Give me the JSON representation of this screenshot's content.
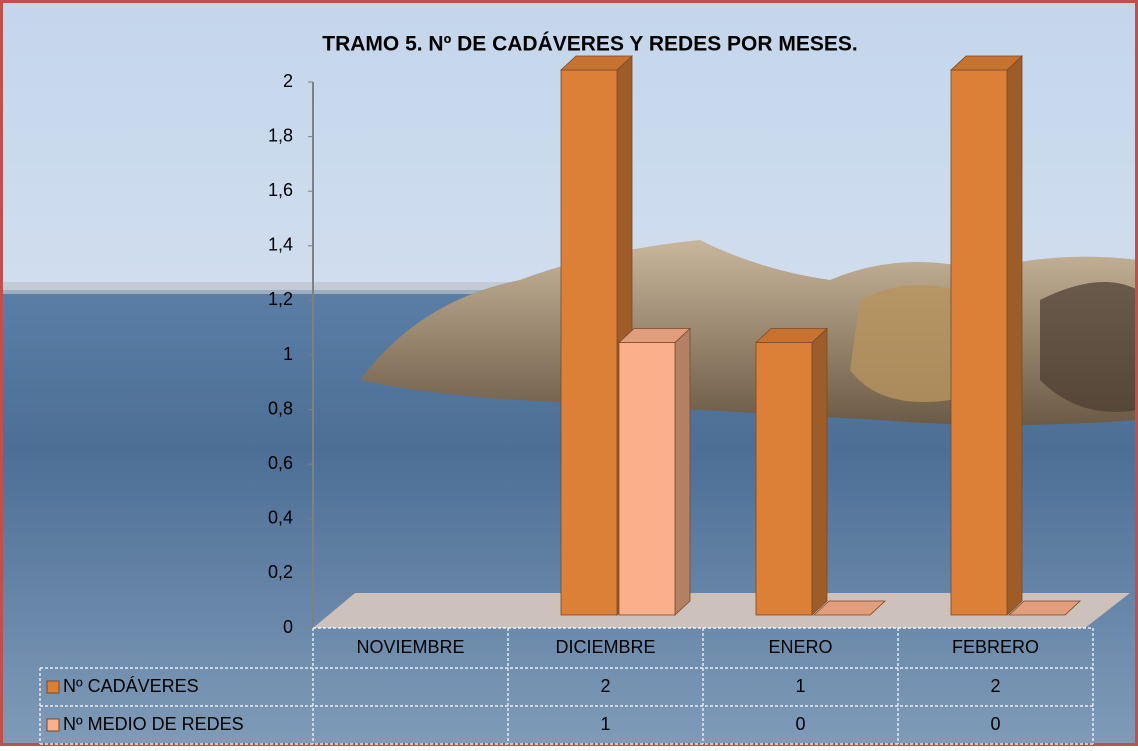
{
  "chart_data": {
    "type": "bar3d",
    "title": "TRAMO 5. Nº DE CADÁVERES  Y REDES POR MESES.",
    "categories": [
      "NOVIEMBRE",
      "DICIEMBRE",
      "ENERO",
      "FEBRERO"
    ],
    "series": [
      {
        "name": "Nº CADÁVERES",
        "color": "#dc8038",
        "values": [
          null,
          2,
          1,
          2
        ]
      },
      {
        "name": "Nº MEDIO DE REDES",
        "color": "#fab08a",
        "values": [
          null,
          1,
          0,
          0
        ]
      }
    ],
    "ylim": [
      0,
      2
    ],
    "yticks": [
      0,
      {
        "value": 0.2,
        "label": "0,2"
      },
      {
        "value": 0.4,
        "label": "0,4"
      },
      {
        "value": 0.6,
        "label": "0,6"
      },
      {
        "value": 0.8,
        "label": "0,8"
      },
      1,
      {
        "value": 1.2,
        "label": "1,2"
      },
      {
        "value": 1.4,
        "label": "1,4"
      },
      {
        "value": 1.6,
        "label": "1,6"
      },
      {
        "value": 1.8,
        "label": "1,8"
      },
      2
    ],
    "data_table": true
  }
}
